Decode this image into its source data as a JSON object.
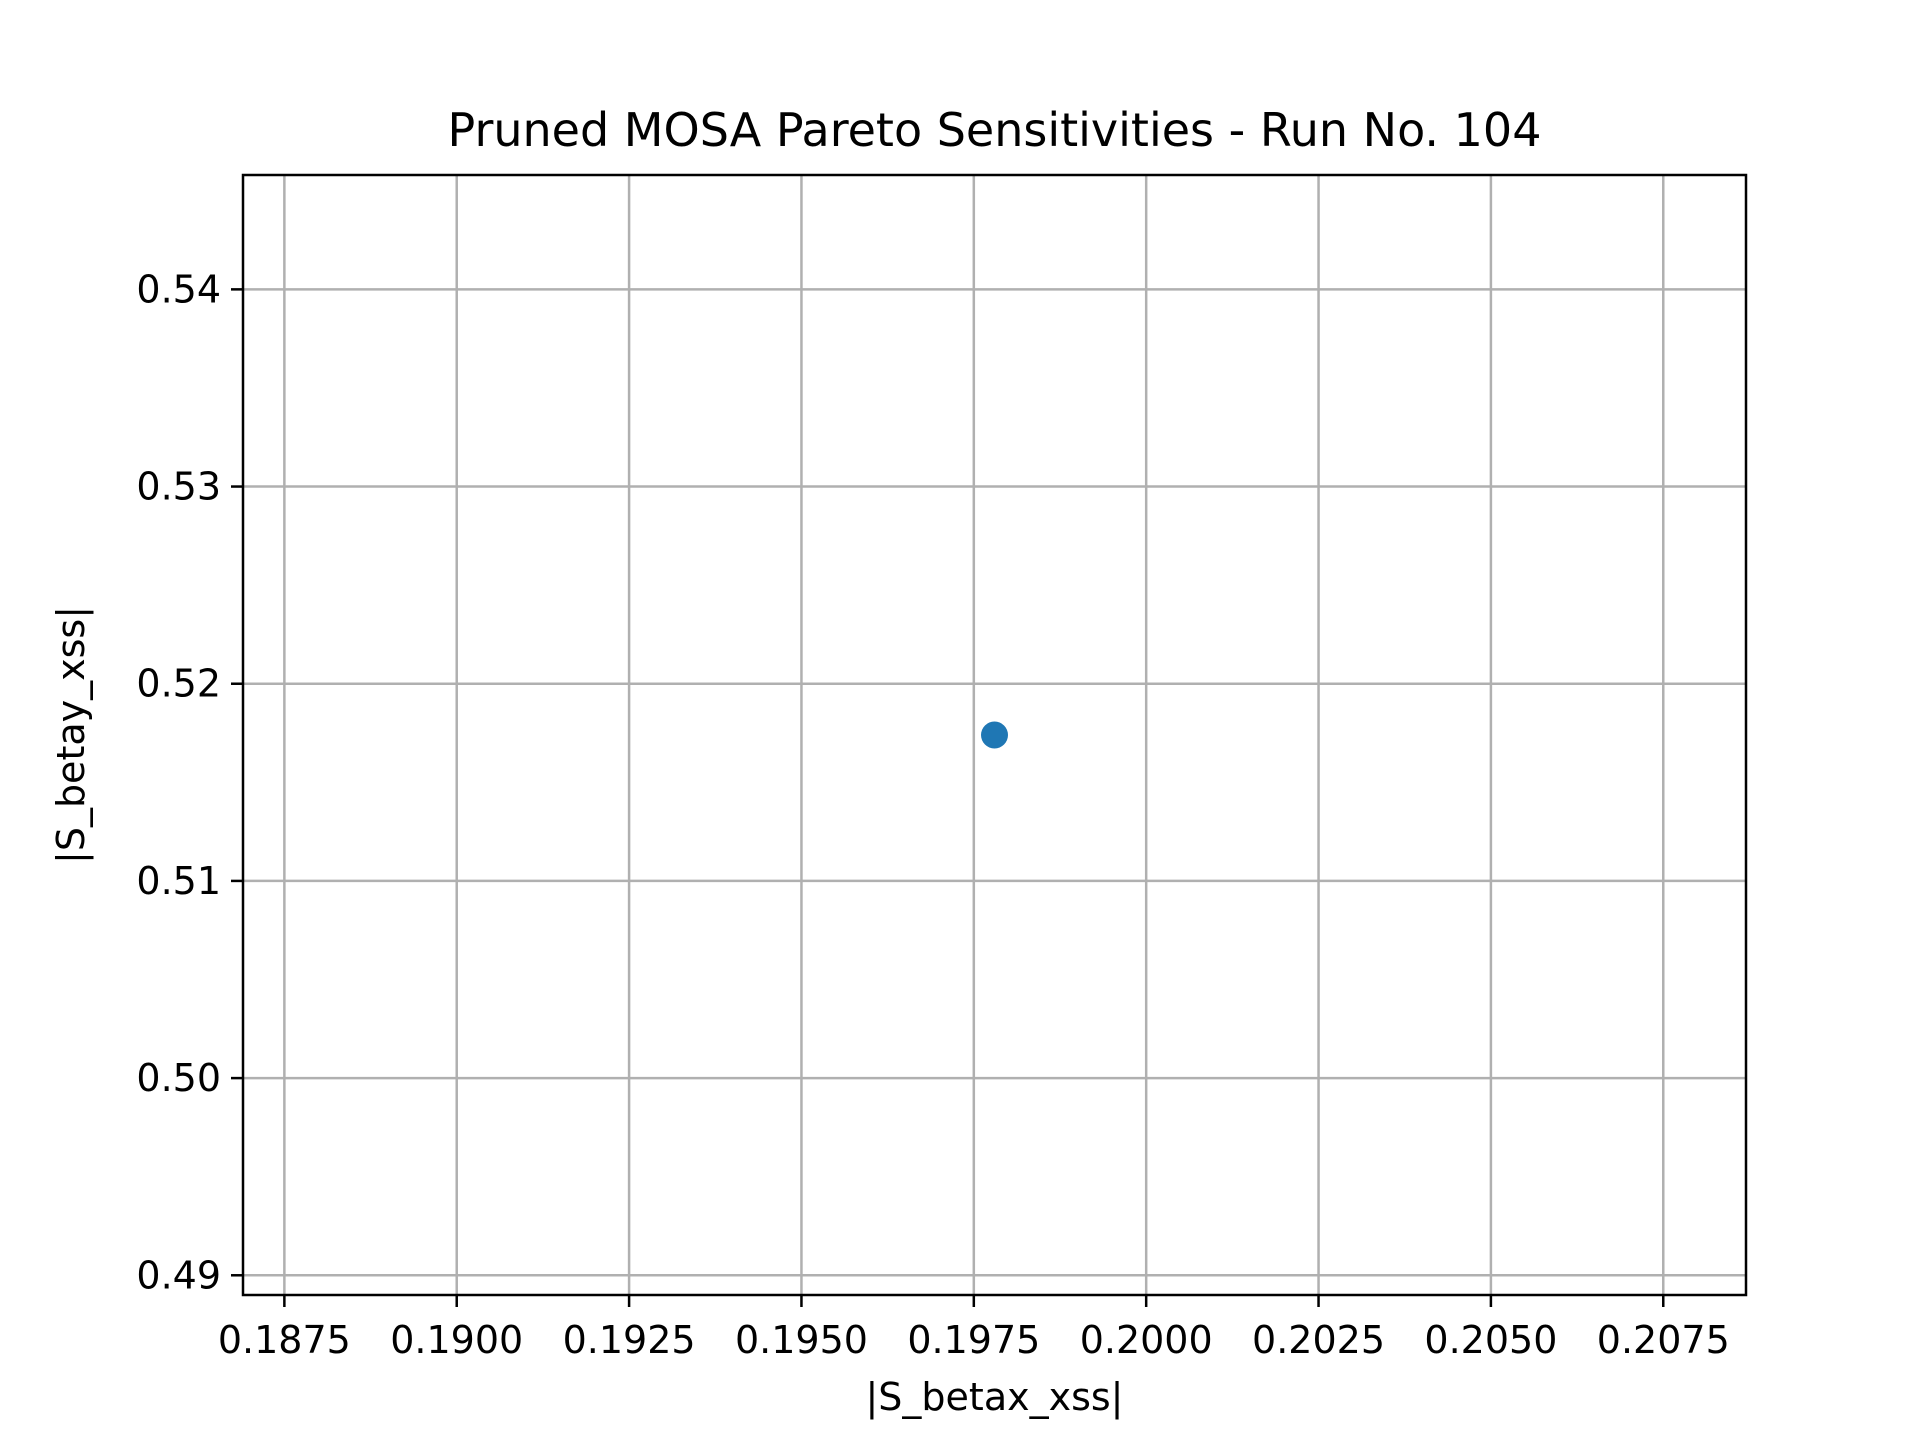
{
  "chart_data": {
    "type": "scatter",
    "title": "Pruned MOSA Pareto Sensitivities - Run No. 104",
    "xlabel": "|S_betax_xss|",
    "ylabel": "|S_betay_xss|",
    "xlim": [
      0.1869,
      0.2087
    ],
    "ylim": [
      0.489,
      0.5458
    ],
    "xticks": [
      0.1875,
      0.19,
      0.1925,
      0.195,
      0.1975,
      0.2,
      0.2025,
      0.205,
      0.2075
    ],
    "xtick_labels": [
      "0.1875",
      "0.1900",
      "0.1925",
      "0.1950",
      "0.1975",
      "0.2000",
      "0.2025",
      "0.2050",
      "0.2075"
    ],
    "yticks": [
      0.49,
      0.5,
      0.51,
      0.52,
      0.53,
      0.54
    ],
    "ytick_labels": [
      "0.49",
      "0.50",
      "0.51",
      "0.52",
      "0.53",
      "0.54"
    ],
    "grid": true,
    "marker_color": "#1f77b4",
    "points": [
      {
        "x": 0.1978,
        "y": 0.5174
      }
    ]
  }
}
